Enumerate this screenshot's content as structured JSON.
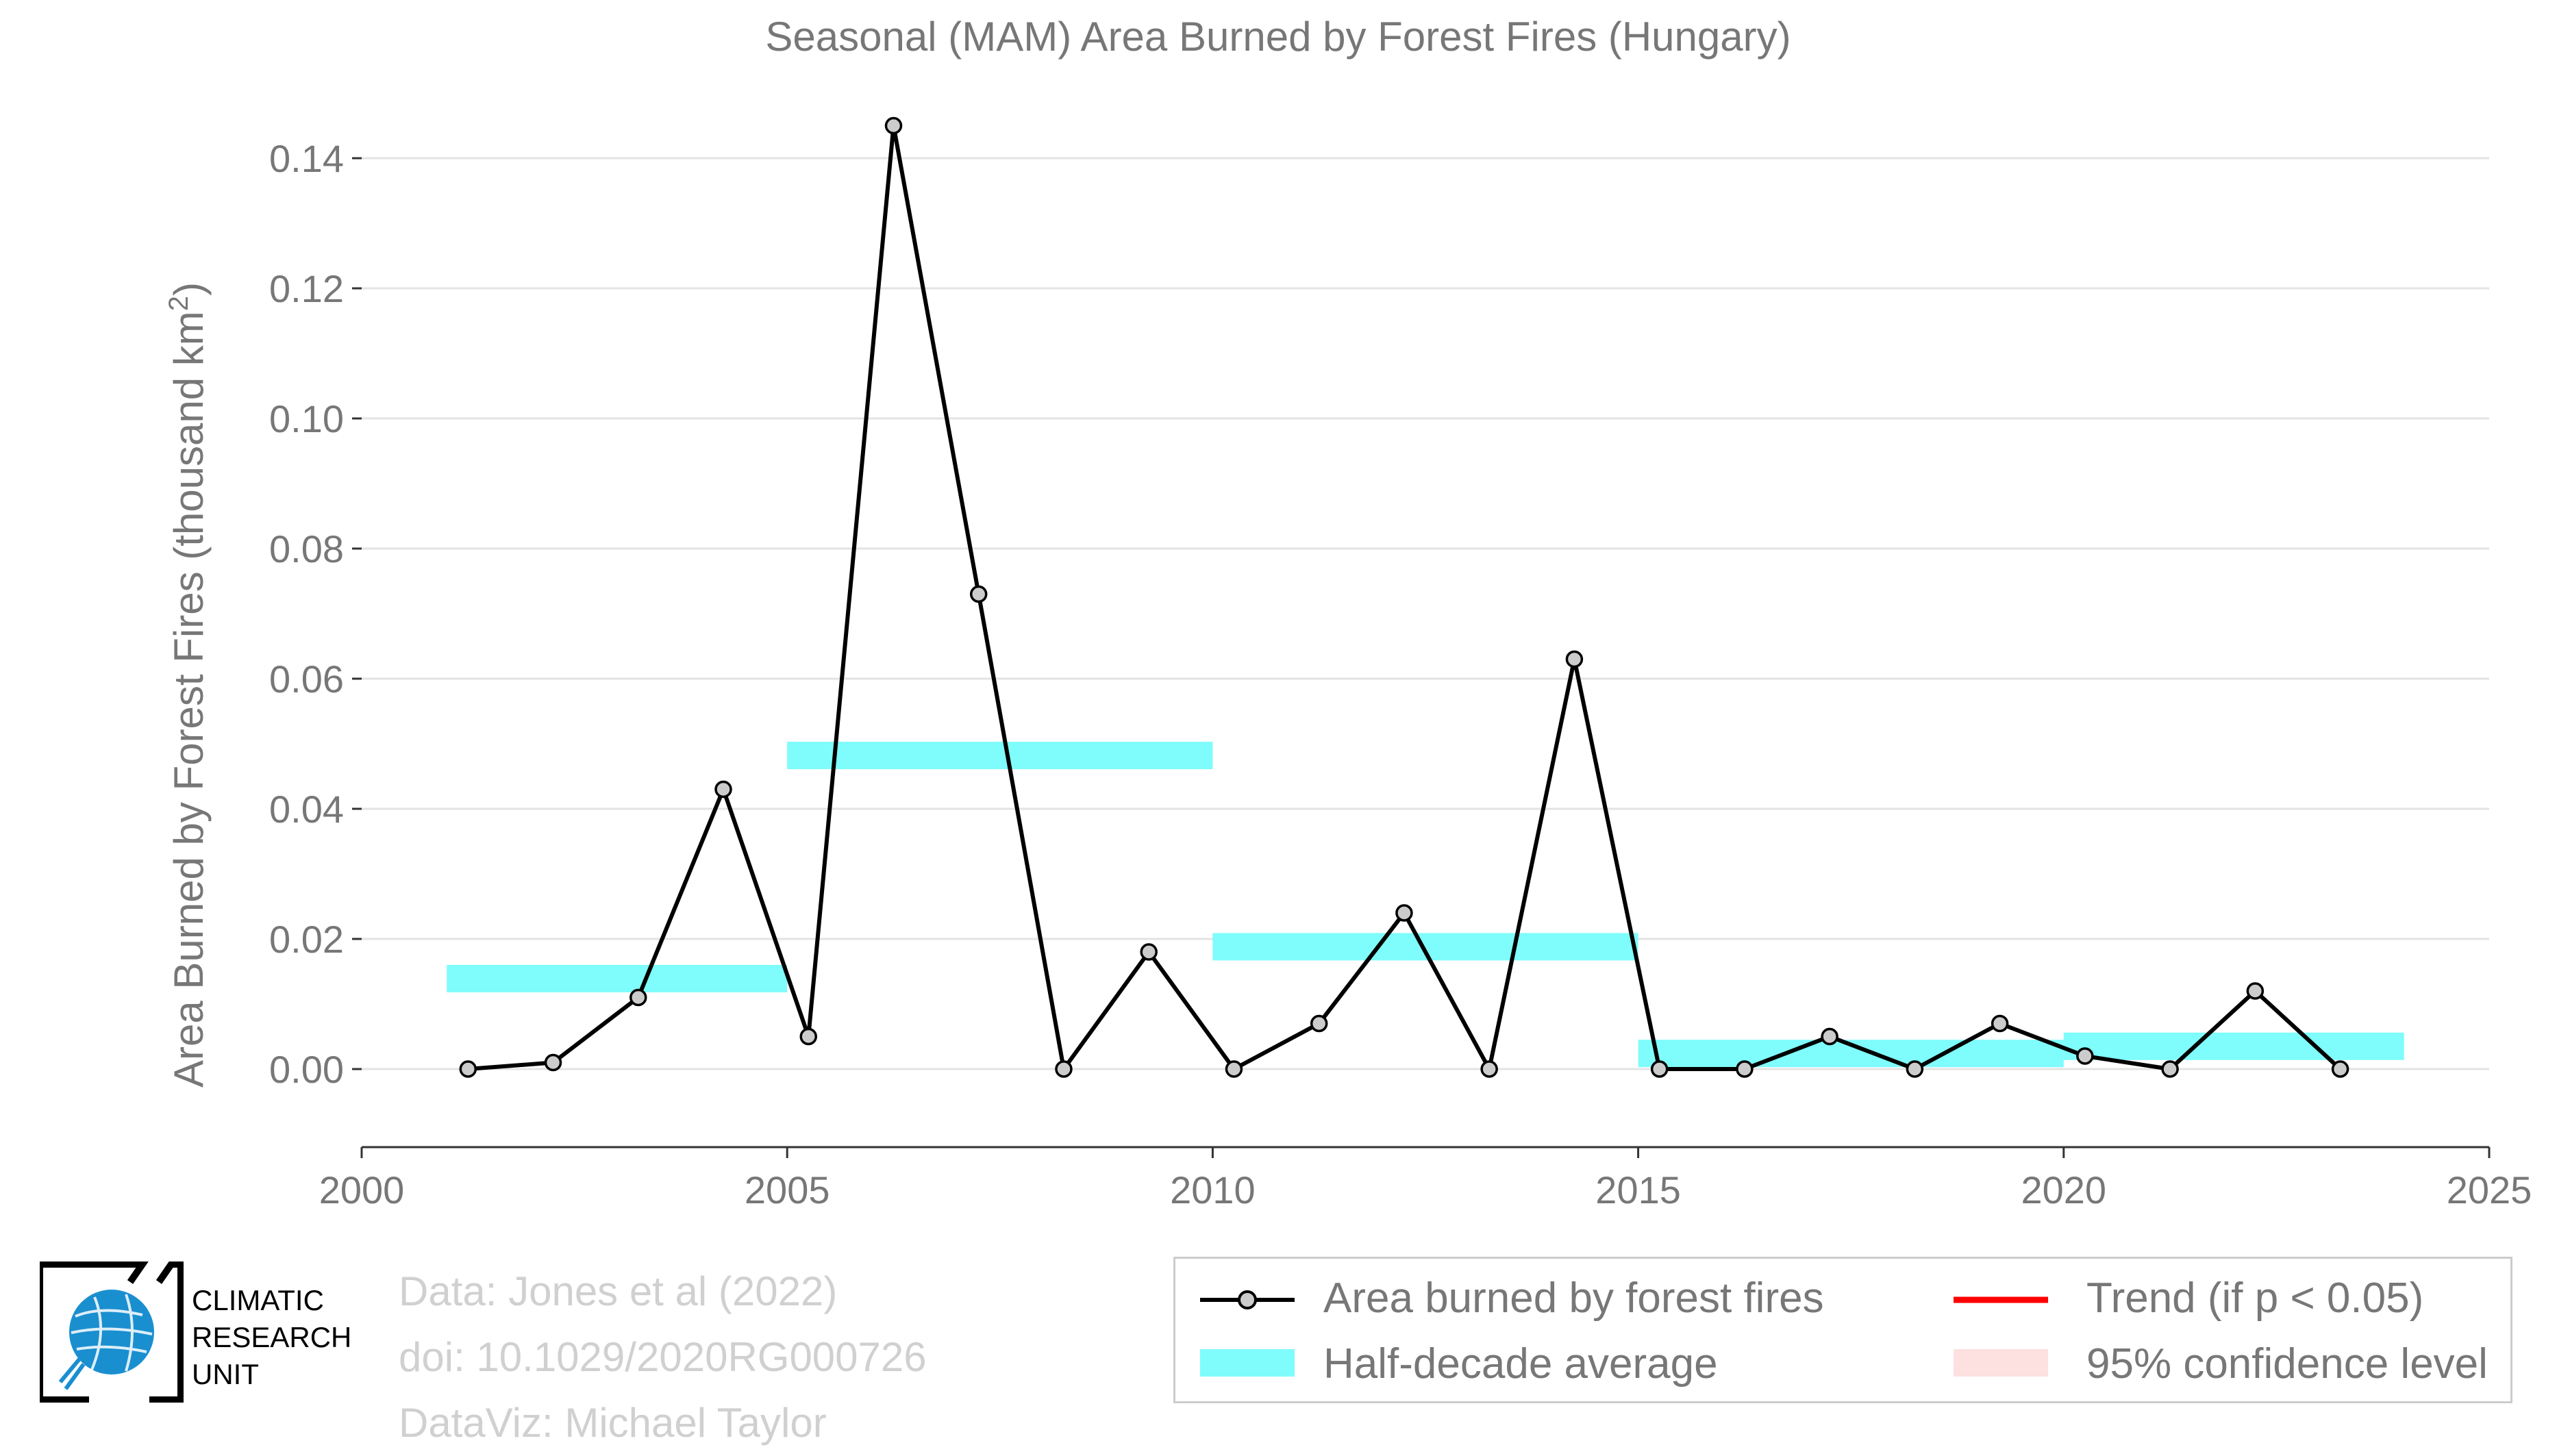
{
  "chart_data": {
    "type": "line",
    "title": "Seasonal (MAM) Area Burned by Forest Fires (Hungary)",
    "xlabel": "",
    "ylabel": "Area Burned by Forest Fires (thousand km",
    "ylabel_sup": "2",
    "ylabel_close": ")",
    "xlim": [
      2000,
      2025
    ],
    "ylim": [
      -0.012,
      0.15
    ],
    "xticks": [
      2000,
      2005,
      2010,
      2015,
      2020,
      2025
    ],
    "yticks": [
      0.0,
      0.02,
      0.04,
      0.06,
      0.08,
      0.1,
      0.12,
      0.14
    ],
    "ytick_labels": [
      "0.00",
      "0.02",
      "0.04",
      "0.06",
      "0.08",
      "0.10",
      "0.12",
      "0.14"
    ],
    "grid": "horizontal",
    "series": [
      {
        "name": "Area burned by forest fires",
        "x": [
          2001.25,
          2002.25,
          2003.25,
          2004.25,
          2005.25,
          2006.25,
          2007.25,
          2008.25,
          2009.25,
          2010.25,
          2011.25,
          2012.25,
          2013.25,
          2014.25,
          2015.25,
          2016.25,
          2017.25,
          2018.25,
          2019.25,
          2020.25,
          2021.25,
          2022.25,
          2023.25
        ],
        "y": [
          0.0,
          0.001,
          0.011,
          0.043,
          0.005,
          0.145,
          0.073,
          0.0,
          0.018,
          0.0,
          0.007,
          0.024,
          0.0,
          0.063,
          0.0,
          0.0,
          0.005,
          0.0,
          0.007,
          0.002,
          0.0,
          0.012,
          0.0
        ],
        "color": "#000000",
        "marker_fill": "#cccccc"
      }
    ],
    "half_decade_average": {
      "name": "Half-decade average",
      "color": "#7ffcfc",
      "segments": [
        {
          "x0": 2001,
          "x1": 2005,
          "y": 0.0139
        },
        {
          "x0": 2005,
          "x1": 2010,
          "y": 0.0482
        },
        {
          "x0": 2010,
          "x1": 2015,
          "y": 0.0188
        },
        {
          "x0": 2015,
          "x1": 2020,
          "y": 0.0024
        },
        {
          "x0": 2020,
          "x1": 2024,
          "y": 0.0035
        }
      ]
    },
    "legend": {
      "position": "bottom-right",
      "items": [
        {
          "label": "Area burned by forest fires",
          "key": "line-marker",
          "color": "#000000"
        },
        {
          "label": "Half-decade average",
          "key": "bar",
          "color": "#7ffcfc"
        },
        {
          "label": "Trend (if p < 0.05)",
          "key": "line",
          "color": "#ff0000"
        },
        {
          "label": "95% confidence level",
          "key": "band",
          "color": "#fde0e0"
        }
      ]
    }
  },
  "credits": {
    "line1": "Data: Jones et al (2022)",
    "line2": "doi: 10.1029/2020RG000726",
    "line3": "DataViz: Michael Taylor"
  },
  "logo": {
    "line1": "CLIMATIC",
    "line2": "RESEARCH",
    "line3": "UNIT",
    "icon": "globe-icon",
    "color": "#1a8fd0"
  }
}
